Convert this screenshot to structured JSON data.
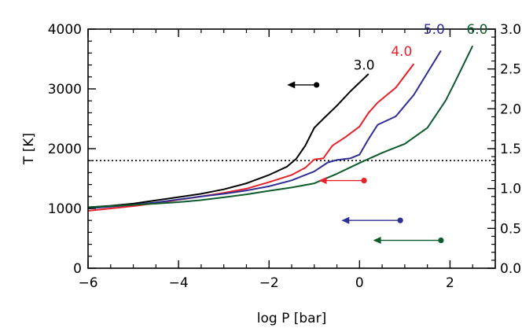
{
  "chart_data": {
    "type": "line",
    "xlabel": "log P [bar]",
    "ylabel": "T [K]",
    "xlim": [
      -6,
      3
    ],
    "ylim": [
      0,
      4000
    ],
    "x_ticks": [
      -6,
      -4,
      -2,
      0,
      2
    ],
    "x_tick_labels": [
      "−6",
      "−4",
      "−2",
      "0",
      "2"
    ],
    "y_ticks": [
      0,
      1000,
      2000,
      3000,
      4000
    ],
    "y_tick_labels": [
      "0",
      "1000",
      "2000",
      "3000",
      "4000"
    ],
    "right_axis": {
      "ylim": [
        0,
        3.0
      ],
      "ticks": [
        0,
        0.5,
        1.0,
        1.5,
        2.0,
        2.5,
        3.0
      ],
      "tick_labels": [
        "0.0",
        "0.5",
        "1.0",
        "1.5",
        "2.0",
        "2.5",
        "3.0"
      ]
    },
    "reference_line": {
      "y": 1800,
      "style": "dotted"
    },
    "series": [
      {
        "name": "3.0",
        "color": "#000000",
        "x": [
          -6.0,
          -5.5,
          -5.0,
          -4.5,
          -4.0,
          -3.5,
          -3.0,
          -2.5,
          -2.0,
          -1.8,
          -1.6,
          -1.4,
          -1.2,
          -1.0,
          -0.8,
          -0.5,
          -0.2,
          0.2
        ],
        "y": [
          1020,
          1045,
          1080,
          1135,
          1190,
          1245,
          1320,
          1420,
          1560,
          1630,
          1700,
          1830,
          2050,
          2350,
          2500,
          2720,
          2960,
          3250
        ],
        "label_at": [
          0.1,
          3400
        ],
        "arrow": {
          "x_from": -0.95,
          "x_to": -1.6,
          "y_right": 2.3
        }
      },
      {
        "name": "4.0",
        "color": "#e8202a",
        "x": [
          -6.0,
          -5.5,
          -5.0,
          -4.5,
          -4.0,
          -3.5,
          -3.0,
          -2.5,
          -2.0,
          -1.5,
          -1.2,
          -1.0,
          -0.8,
          -0.6,
          -0.3,
          0.0,
          0.2,
          0.4,
          0.8,
          1.2
        ],
        "y": [
          960,
          1000,
          1040,
          1090,
          1145,
          1200,
          1260,
          1330,
          1440,
          1560,
          1680,
          1820,
          1840,
          2050,
          2200,
          2370,
          2600,
          2770,
          3020,
          3420
        ],
        "label_at": [
          0.93,
          3630
        ],
        "arrow": {
          "x_from": 0.1,
          "x_to": -0.9,
          "y_right": 1.1
        }
      },
      {
        "name": "5.0",
        "color": "#2e2e93",
        "x": [
          -6.0,
          -5.5,
          -5.0,
          -4.5,
          -4.0,
          -3.5,
          -3.0,
          -2.5,
          -2.0,
          -1.5,
          -1.0,
          -0.7,
          -0.5,
          -0.2,
          0.0,
          0.2,
          0.4,
          0.8,
          1.2,
          1.8
        ],
        "y": [
          1000,
          1030,
          1060,
          1100,
          1150,
          1200,
          1245,
          1300,
          1370,
          1470,
          1620,
          1770,
          1810,
          1840,
          1900,
          2160,
          2400,
          2540,
          2900,
          3640
        ],
        "label_at": [
          1.65,
          4000
        ],
        "arrow": {
          "x_from": 0.9,
          "x_to": -0.4,
          "y_right": 0.6
        }
      },
      {
        "name": "6.0",
        "color": "#0d5a2b",
        "x": [
          -6.0,
          -5.5,
          -5.0,
          -4.5,
          -4.0,
          -3.5,
          -3.0,
          -2.5,
          -2.0,
          -1.5,
          -1.0,
          -0.5,
          0.0,
          0.5,
          1.0,
          1.5,
          1.9,
          2.1,
          2.5
        ],
        "y": [
          1020,
          1040,
          1060,
          1080,
          1105,
          1140,
          1185,
          1235,
          1295,
          1350,
          1420,
          1580,
          1760,
          1930,
          2080,
          2350,
          2800,
          3100,
          3720
        ],
        "label_at": [
          2.6,
          4000
        ],
        "arrow": {
          "x_from": 1.8,
          "x_to": 0.3,
          "y_right": 0.35
        }
      }
    ]
  }
}
